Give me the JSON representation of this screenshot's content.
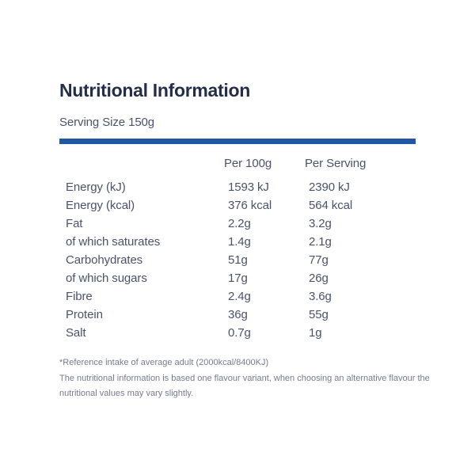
{
  "header": {
    "title": "Nutritional Information",
    "serving_size": "Serving Size 150g"
  },
  "table": {
    "columns": [
      "Per 100g",
      "Per Serving"
    ],
    "rows": [
      {
        "label": "Energy (kJ)",
        "per_100g": "1593 kJ",
        "per_serving": "2390 kJ"
      },
      {
        "label": "Energy (kcal)",
        "per_100g": "376 kcal",
        "per_serving": "564 kcal"
      },
      {
        "label": "Fat",
        "per_100g": "2.2g",
        "per_serving": "3.2g"
      },
      {
        "label": "of which saturates",
        "per_100g": "1.4g",
        "per_serving": "2.1g"
      },
      {
        "label": "Carbohydrates",
        "per_100g": "51g",
        "per_serving": "77g"
      },
      {
        "label": "of which sugars",
        "per_100g": "17g",
        "per_serving": "26g"
      },
      {
        "label": "Fibre",
        "per_100g": "2.4g",
        "per_serving": "3.6g"
      },
      {
        "label": "Protein",
        "per_100g": "36g",
        "per_serving": "55g"
      },
      {
        "label": "Salt",
        "per_100g": "0.7g",
        "per_serving": "1g"
      }
    ]
  },
  "notes": {
    "line1": "*Reference intake of average adult (2000kcal/8400KJ)",
    "line2": "The nutritional information is based one flavour variant, when choosing an alternative flavour the",
    "line3": "nutritional values may vary slightly."
  },
  "colors": {
    "accent_bar": "#2157A7",
    "title_text": "#242E49",
    "body_text": "#48536B",
    "note_text": "#737B8C"
  }
}
